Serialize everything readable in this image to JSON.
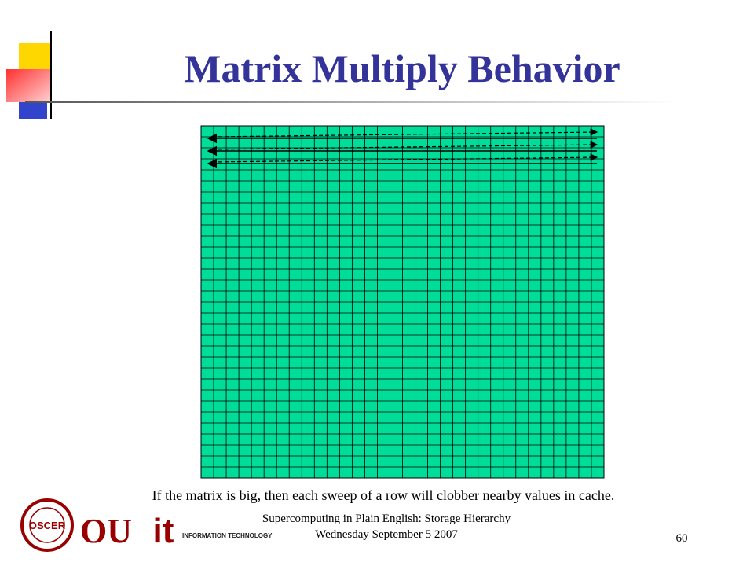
{
  "slide": {
    "title": "Matrix Multiply Behavior",
    "caption": "If the matrix is big, then each sweep of a row will clobber nearby values in cache.",
    "footer": {
      "line1": "Supercomputing in Plain English: Storage Hierarchy",
      "line2": "Wednesday September 5 2007"
    },
    "page_number": "60",
    "logos": {
      "oscer": "OSCER",
      "ou": "OU",
      "it": "it",
      "it_text": "INFORMATION TECHNOLOGY"
    }
  }
}
